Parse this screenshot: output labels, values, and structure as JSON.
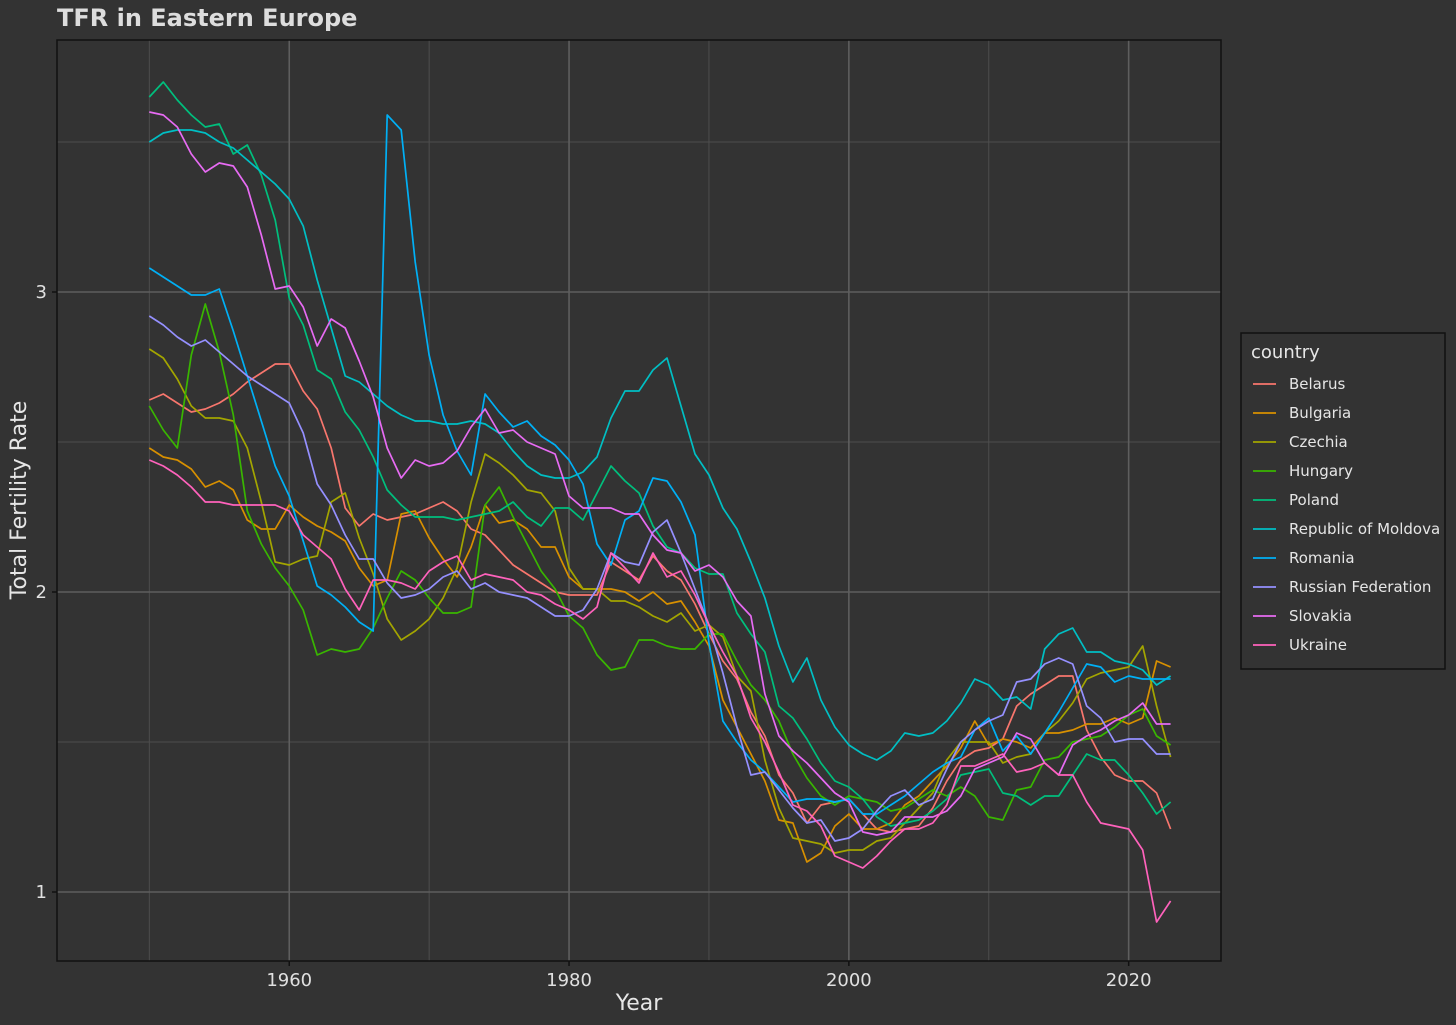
{
  "chart_data": {
    "type": "line",
    "title": "TFR in Eastern Europe",
    "xlabel": "Year",
    "ylabel": "Total Fertility Rate",
    "xlim": [
      1943.4,
      2026.6
    ],
    "ylim": [
      0.77,
      3.84
    ],
    "x_ticks": [
      1960,
      1980,
      2000,
      2020
    ],
    "y_ticks": [
      1,
      2,
      3
    ],
    "x_tick_labels": [
      "1960",
      "1980",
      "2000",
      "2020"
    ],
    "y_tick_labels": [
      "1",
      "2",
      "3"
    ],
    "grid": true,
    "legend_title": "country",
    "legend_position": "right",
    "x": [
      1950,
      1951,
      1952,
      1953,
      1954,
      1955,
      1956,
      1957,
      1958,
      1959,
      1960,
      1961,
      1962,
      1963,
      1964,
      1965,
      1966,
      1967,
      1968,
      1969,
      1970,
      1971,
      1972,
      1973,
      1974,
      1975,
      1976,
      1977,
      1978,
      1979,
      1980,
      1981,
      1982,
      1983,
      1984,
      1985,
      1986,
      1987,
      1988,
      1989,
      1990,
      1991,
      1992,
      1993,
      1994,
      1995,
      1996,
      1997,
      1998,
      1999,
      2000,
      2001,
      2002,
      2003,
      2004,
      2005,
      2006,
      2007,
      2008,
      2009,
      2010,
      2011,
      2012,
      2013,
      2014,
      2015,
      2016,
      2017,
      2018,
      2019,
      2020,
      2021,
      2022,
      2023
    ],
    "series": [
      {
        "name": "Belarus",
        "color": "#F8766D",
        "values": [
          2.64,
          2.66,
          2.63,
          2.6,
          2.61,
          2.63,
          2.66,
          2.7,
          2.73,
          2.76,
          2.76,
          2.67,
          2.61,
          2.48,
          2.28,
          2.22,
          2.26,
          2.24,
          2.25,
          2.26,
          2.28,
          2.3,
          2.27,
          2.21,
          2.19,
          2.14,
          2.09,
          2.06,
          2.03,
          2.0,
          1.99,
          1.99,
          1.99,
          2.1,
          2.07,
          2.04,
          2.12,
          2.07,
          2.04,
          1.96,
          1.86,
          1.77,
          1.71,
          1.6,
          1.52,
          1.39,
          1.33,
          1.23,
          1.29,
          1.3,
          1.31,
          1.26,
          1.21,
          1.2,
          1.21,
          1.22,
          1.28,
          1.37,
          1.44,
          1.47,
          1.48,
          1.51,
          1.62,
          1.66,
          1.69,
          1.72,
          1.72,
          1.54,
          1.45,
          1.39,
          1.37,
          1.37,
          1.33,
          1.21
        ]
      },
      {
        "name": "Bulgaria",
        "color": "#D89000",
        "values": [
          2.48,
          2.45,
          2.44,
          2.41,
          2.35,
          2.37,
          2.34,
          2.24,
          2.21,
          2.21,
          2.29,
          2.25,
          2.22,
          2.2,
          2.17,
          2.08,
          2.02,
          2.04,
          2.26,
          2.27,
          2.18,
          2.11,
          2.05,
          2.15,
          2.29,
          2.23,
          2.24,
          2.21,
          2.15,
          2.15,
          2.05,
          2.01,
          2.01,
          2.01,
          2.0,
          1.97,
          2.0,
          1.96,
          1.97,
          1.9,
          1.82,
          1.64,
          1.55,
          1.46,
          1.37,
          1.24,
          1.23,
          1.1,
          1.13,
          1.22,
          1.26,
          1.21,
          1.21,
          1.23,
          1.29,
          1.32,
          1.37,
          1.42,
          1.48,
          1.57,
          1.49,
          1.51,
          1.5,
          1.48,
          1.53,
          1.53,
          1.54,
          1.56,
          1.56,
          1.58,
          1.56,
          1.58,
          1.77,
          1.75
        ]
      },
      {
        "name": "Czechia",
        "color": "#A3A500",
        "values": [
          2.81,
          2.78,
          2.71,
          2.62,
          2.58,
          2.58,
          2.57,
          2.48,
          2.3,
          2.1,
          2.09,
          2.11,
          2.12,
          2.3,
          2.33,
          2.18,
          2.06,
          1.91,
          1.84,
          1.87,
          1.91,
          1.98,
          2.08,
          2.3,
          2.46,
          2.43,
          2.39,
          2.34,
          2.33,
          2.27,
          2.08,
          2.01,
          2.01,
          1.97,
          1.97,
          1.95,
          1.92,
          1.9,
          1.93,
          1.87,
          1.89,
          1.85,
          1.72,
          1.67,
          1.44,
          1.28,
          1.18,
          1.17,
          1.16,
          1.13,
          1.14,
          1.14,
          1.17,
          1.18,
          1.23,
          1.28,
          1.33,
          1.44,
          1.5,
          1.5,
          1.5,
          1.43,
          1.45,
          1.46,
          1.53,
          1.57,
          1.63,
          1.71,
          1.73,
          1.74,
          1.75,
          1.82,
          1.62,
          1.45
        ]
      },
      {
        "name": "Hungary",
        "color": "#39B600",
        "values": [
          2.62,
          2.54,
          2.48,
          2.79,
          2.96,
          2.8,
          2.59,
          2.27,
          2.16,
          2.08,
          2.02,
          1.94,
          1.79,
          1.81,
          1.8,
          1.81,
          1.88,
          1.98,
          2.07,
          2.04,
          1.98,
          1.93,
          1.93,
          1.95,
          2.29,
          2.35,
          2.25,
          2.16,
          2.07,
          2.01,
          1.92,
          1.88,
          1.79,
          1.74,
          1.75,
          1.84,
          1.84,
          1.82,
          1.81,
          1.81,
          1.86,
          1.86,
          1.77,
          1.69,
          1.64,
          1.57,
          1.46,
          1.38,
          1.32,
          1.29,
          1.32,
          1.31,
          1.3,
          1.27,
          1.28,
          1.31,
          1.34,
          1.32,
          1.35,
          1.32,
          1.25,
          1.24,
          1.34,
          1.35,
          1.44,
          1.45,
          1.5,
          1.51,
          1.52,
          1.55,
          1.59,
          1.61,
          1.52,
          1.49
        ]
      },
      {
        "name": "Poland",
        "color": "#00BF7D",
        "values": [
          3.65,
          3.7,
          3.64,
          3.59,
          3.55,
          3.56,
          3.46,
          3.49,
          3.39,
          3.24,
          2.98,
          2.89,
          2.74,
          2.71,
          2.6,
          2.54,
          2.45,
          2.34,
          2.29,
          2.25,
          2.25,
          2.25,
          2.24,
          2.25,
          2.26,
          2.27,
          2.3,
          2.25,
          2.22,
          2.28,
          2.28,
          2.24,
          2.33,
          2.42,
          2.37,
          2.33,
          2.22,
          2.15,
          2.13,
          2.08,
          2.06,
          2.06,
          1.93,
          1.86,
          1.8,
          1.62,
          1.58,
          1.51,
          1.43,
          1.37,
          1.35,
          1.31,
          1.25,
          1.22,
          1.23,
          1.24,
          1.27,
          1.31,
          1.39,
          1.4,
          1.41,
          1.33,
          1.32,
          1.29,
          1.32,
          1.32,
          1.39,
          1.46,
          1.44,
          1.44,
          1.39,
          1.33,
          1.26,
          1.3
        ]
      },
      {
        "name": "Republic of Moldova",
        "color": "#00BFC4",
        "values": [
          3.5,
          3.53,
          3.54,
          3.54,
          3.53,
          3.5,
          3.48,
          3.44,
          3.4,
          3.36,
          3.31,
          3.22,
          3.04,
          2.88,
          2.72,
          2.7,
          2.66,
          2.62,
          2.59,
          2.57,
          2.57,
          2.56,
          2.56,
          2.57,
          2.56,
          2.53,
          2.47,
          2.42,
          2.39,
          2.38,
          2.38,
          2.4,
          2.45,
          2.58,
          2.67,
          2.67,
          2.74,
          2.78,
          2.62,
          2.46,
          2.39,
          2.28,
          2.21,
          2.1,
          1.98,
          1.82,
          1.7,
          1.78,
          1.64,
          1.55,
          1.49,
          1.46,
          1.44,
          1.47,
          1.53,
          1.52,
          1.53,
          1.57,
          1.63,
          1.71,
          1.69,
          1.64,
          1.65,
          1.61,
          1.81,
          1.86,
          1.88,
          1.8,
          1.8,
          1.77,
          1.76,
          1.74,
          1.69,
          1.72
        ]
      },
      {
        "name": "Romania",
        "color": "#00B0F6",
        "values": [
          3.08,
          3.05,
          3.02,
          2.99,
          2.99,
          3.01,
          2.87,
          2.72,
          2.57,
          2.42,
          2.32,
          2.17,
          2.02,
          1.99,
          1.95,
          1.9,
          1.87,
          3.59,
          3.54,
          3.1,
          2.79,
          2.59,
          2.47,
          2.39,
          2.66,
          2.6,
          2.55,
          2.57,
          2.52,
          2.49,
          2.44,
          2.36,
          2.16,
          2.09,
          2.24,
          2.27,
          2.38,
          2.37,
          2.3,
          2.19,
          1.83,
          1.57,
          1.5,
          1.44,
          1.4,
          1.35,
          1.3,
          1.31,
          1.31,
          1.3,
          1.31,
          1.26,
          1.26,
          1.29,
          1.32,
          1.36,
          1.4,
          1.43,
          1.45,
          1.54,
          1.58,
          1.47,
          1.52,
          1.46,
          1.53,
          1.6,
          1.68,
          1.76,
          1.75,
          1.7,
          1.72,
          1.71,
          1.71,
          1.71
        ]
      },
      {
        "name": "Russian Federation",
        "color": "#9590FF",
        "values": [
          2.92,
          2.89,
          2.85,
          2.82,
          2.84,
          2.8,
          2.76,
          2.72,
          2.69,
          2.66,
          2.63,
          2.53,
          2.36,
          2.29,
          2.19,
          2.11,
          2.11,
          2.03,
          1.98,
          1.99,
          2.01,
          2.05,
          2.07,
          2.01,
          2.03,
          2.0,
          1.99,
          1.98,
          1.95,
          1.92,
          1.92,
          1.94,
          2.01,
          2.13,
          2.1,
          2.09,
          2.2,
          2.24,
          2.13,
          2.01,
          1.89,
          1.73,
          1.55,
          1.39,
          1.4,
          1.34,
          1.28,
          1.23,
          1.24,
          1.17,
          1.18,
          1.21,
          1.27,
          1.32,
          1.34,
          1.29,
          1.31,
          1.41,
          1.5,
          1.54,
          1.57,
          1.59,
          1.7,
          1.71,
          1.76,
          1.78,
          1.76,
          1.62,
          1.58,
          1.5,
          1.51,
          1.51,
          1.46,
          1.46
        ]
      },
      {
        "name": "Slovakia",
        "color": "#E76BF3",
        "values": [
          3.6,
          3.59,
          3.55,
          3.46,
          3.4,
          3.43,
          3.42,
          3.35,
          3.19,
          3.01,
          3.02,
          2.95,
          2.82,
          2.91,
          2.88,
          2.77,
          2.65,
          2.48,
          2.38,
          2.44,
          2.42,
          2.43,
          2.47,
          2.55,
          2.61,
          2.53,
          2.54,
          2.5,
          2.48,
          2.46,
          2.32,
          2.28,
          2.28,
          2.28,
          2.26,
          2.26,
          2.19,
          2.14,
          2.13,
          2.07,
          2.09,
          2.05,
          1.97,
          1.92,
          1.66,
          1.52,
          1.47,
          1.43,
          1.38,
          1.33,
          1.3,
          1.2,
          1.19,
          1.2,
          1.25,
          1.25,
          1.25,
          1.27,
          1.32,
          1.41,
          1.43,
          1.45,
          1.53,
          1.51,
          1.43,
          1.39,
          1.49,
          1.52,
          1.54,
          1.57,
          1.59,
          1.63,
          1.56,
          1.56
        ]
      },
      {
        "name": "Ukraine",
        "color": "#FF62BC",
        "values": [
          2.44,
          2.42,
          2.39,
          2.35,
          2.3,
          2.3,
          2.29,
          2.29,
          2.29,
          2.29,
          2.27,
          2.19,
          2.15,
          2.11,
          2.01,
          1.94,
          2.04,
          2.04,
          2.03,
          2.01,
          2.07,
          2.1,
          2.12,
          2.04,
          2.06,
          2.05,
          2.04,
          2.0,
          1.99,
          1.96,
          1.94,
          1.91,
          1.95,
          2.13,
          2.08,
          2.03,
          2.13,
          2.05,
          2.07,
          1.99,
          1.89,
          1.8,
          1.72,
          1.58,
          1.5,
          1.4,
          1.29,
          1.27,
          1.22,
          1.12,
          1.1,
          1.08,
          1.12,
          1.17,
          1.21,
          1.21,
          1.23,
          1.29,
          1.42,
          1.42,
          1.44,
          1.46,
          1.4,
          1.41,
          1.43,
          1.39,
          1.39,
          1.3,
          1.23,
          1.22,
          1.21,
          1.14,
          0.9,
          0.97
        ]
      }
    ]
  }
}
